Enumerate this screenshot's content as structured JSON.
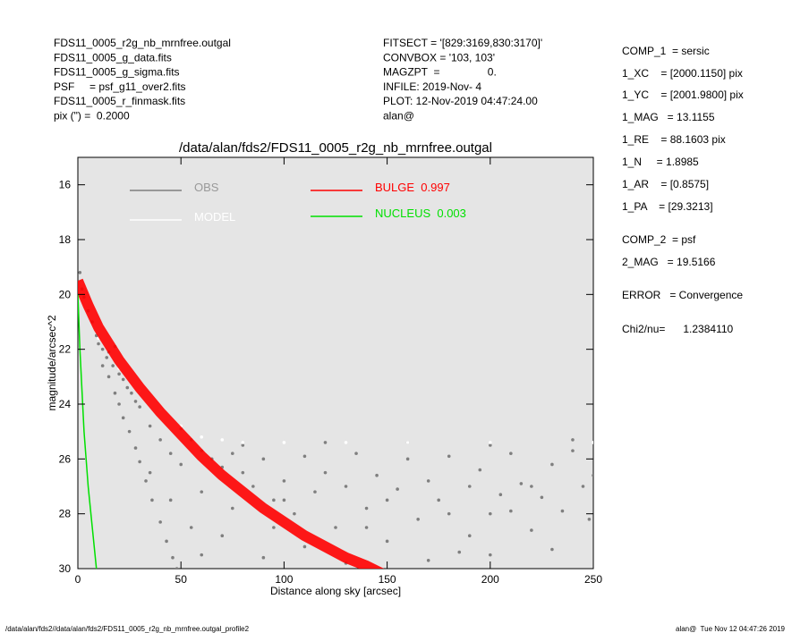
{
  "header": {
    "left": [
      "FDS11_0005_r2g_nb_mrnfree.outgal",
      "FDS11_0005_g_data.fits",
      "FDS11_0005_g_sigma.fits",
      "PSF     = psf_g11_over2.fits",
      "FDS11_0005_r_finmask.fits",
      "pix (\") =  0.2000"
    ],
    "middle": [
      "FITSECT = '[829:3169,830:3170]'",
      "CONVBOX = '103, 103'",
      "MAGZPT  =                0.",
      "INFILE: 2019-Nov- 4",
      "PLOT: 12-Nov-2019 04:47:24.00",
      "alan@"
    ],
    "right": [
      "COMP_1  = sersic",
      "1_XC    = [2000.1150] pix",
      "1_YC    = [2001.9800] pix",
      "1_MAG   = 13.1155",
      "1_RE    = 88.1603 pix",
      "1_N     = 1.8985",
      "1_AR    = [0.8575]",
      "1_PA    = [29.3213]",
      "COMP_2  = psf",
      "2_MAG   = 19.5166",
      "ERROR   = Convergence",
      "Chi2/nu=      1.2384110"
    ]
  },
  "footer": {
    "left": "/data/alan/fds2//data/alan/fds2/FDS11_0005_r2g_nb_mrnfree.outgal_profile2",
    "right": "alan@  Tue Nov 12 04:47:26 2019"
  },
  "chart_data": {
    "type": "scatter",
    "title": "/data/alan/fds2/FDS11_0005_r2g_nb_mrnfree.outgal",
    "x_label": "Distance along sky [arcsec]",
    "y_label": "magnitude/arcsec^2",
    "xlim": [
      0,
      250
    ],
    "xticks": [
      0,
      50,
      100,
      150,
      200,
      250
    ],
    "ylim": [
      15,
      30
    ],
    "yticks": [
      16,
      18,
      20,
      22,
      24,
      26,
      28,
      30
    ],
    "y_inverted": true,
    "background": "#e5e5e5",
    "series": [
      {
        "name": "OBS",
        "color": "#7f7f7f",
        "mode": "markers",
        "x": [
          1,
          2,
          3,
          5,
          7,
          9,
          10,
          12,
          14,
          15,
          17,
          18,
          20,
          22,
          24,
          26,
          28,
          30,
          12,
          15,
          18,
          20,
          22,
          25,
          28,
          30,
          33,
          36,
          40,
          43,
          46,
          48,
          35,
          40,
          45,
          50,
          35,
          45,
          55,
          60,
          50,
          55,
          60,
          65,
          70,
          75,
          80,
          85,
          90,
          95,
          100,
          105,
          110,
          115,
          120,
          125,
          130,
          135,
          140,
          145,
          150,
          155,
          160,
          165,
          170,
          175,
          180,
          185,
          190,
          195,
          200,
          205,
          210,
          215,
          220,
          225,
          230,
          235,
          240,
          245,
          250,
          70,
          90,
          110,
          130,
          170,
          200,
          230,
          80,
          120,
          160,
          200,
          240,
          100,
          140,
          180,
          220,
          60,
          75,
          95,
          150,
          190,
          210,
          248
        ],
        "values": [
          19.2,
          19.8,
          20.1,
          20.6,
          21.0,
          21.5,
          21.8,
          22.0,
          22.3,
          22.1,
          22.6,
          21.9,
          22.9,
          23.1,
          23.4,
          23.6,
          23.9,
          24.1,
          22.6,
          23.0,
          23.6,
          24.0,
          24.5,
          25.0,
          25.6,
          26.1,
          26.8,
          27.5,
          28.3,
          29.0,
          29.6,
          30.0,
          24.8,
          25.3,
          25.8,
          26.2,
          26.5,
          27.5,
          28.5,
          29.5,
          24.9,
          25.3,
          25.7,
          26.0,
          26.3,
          25.8,
          26.5,
          27.0,
          26.0,
          27.5,
          26.8,
          28.0,
          25.9,
          27.2,
          26.5,
          28.5,
          27.0,
          25.8,
          27.8,
          26.6,
          29.0,
          27.1,
          26.0,
          28.2,
          26.8,
          27.5,
          25.9,
          29.4,
          27.0,
          26.4,
          28.0,
          27.3,
          25.8,
          26.9,
          28.6,
          27.4,
          26.2,
          27.9,
          25.7,
          27.0,
          26.6,
          28.8,
          29.6,
          29.2,
          29.8,
          29.7,
          29.5,
          29.3,
          25.5,
          25.4,
          25.4,
          25.5,
          25.3,
          27.5,
          28.5,
          28.0,
          27.0,
          27.2,
          27.8,
          28.5,
          27.5,
          28.8,
          27.9,
          28.2
        ]
      },
      {
        "name": "MODEL",
        "color": "#ffffff",
        "mode": "markers",
        "x": [
          2,
          10,
          20,
          30,
          40,
          50,
          60,
          70,
          80,
          100,
          130,
          160,
          200,
          250
        ],
        "values": [
          19.6,
          21.6,
          22.7,
          23.5,
          24.2,
          24.8,
          25.2,
          25.3,
          25.4,
          25.4,
          25.4,
          25.4,
          25.4,
          25.4
        ]
      },
      {
        "name": "BULGE  0.997",
        "color": "#ff0000",
        "mode": "lines",
        "x": [
          0,
          5,
          10,
          20,
          30,
          40,
          50,
          60,
          70,
          80,
          90,
          100,
          110,
          120,
          130,
          140,
          148
        ],
        "values": [
          19.5,
          20.4,
          21.2,
          22.4,
          23.4,
          24.3,
          25.1,
          25.9,
          26.6,
          27.2,
          27.8,
          28.3,
          28.8,
          29.2,
          29.6,
          29.9,
          30.2
        ]
      },
      {
        "name": "NUCLEUS  0.003",
        "color": "#00e000",
        "mode": "lines",
        "x": [
          0,
          0.5,
          1,
          2,
          3,
          5,
          7,
          9
        ],
        "values": [
          20,
          21,
          22,
          23.5,
          25,
          27,
          28.5,
          30
        ]
      }
    ]
  }
}
